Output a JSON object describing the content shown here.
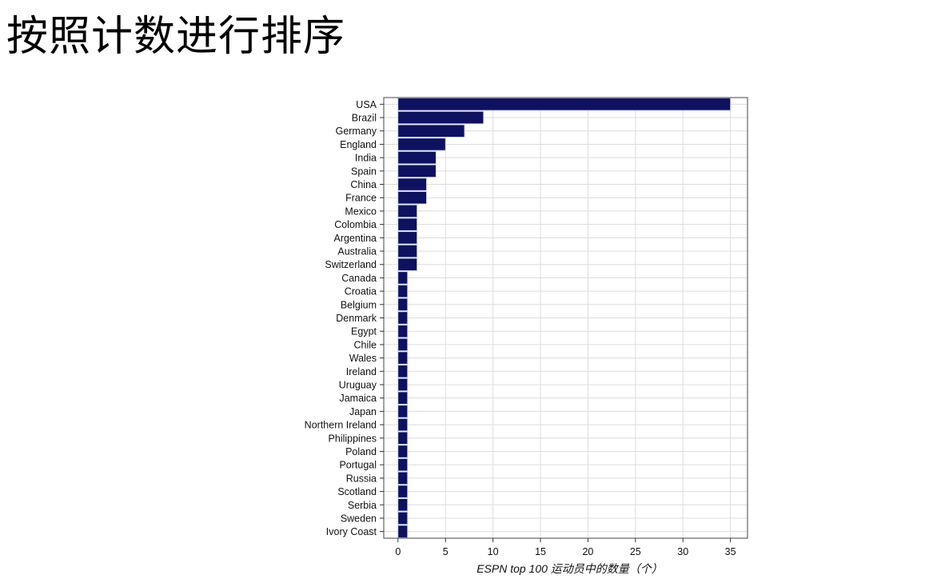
{
  "slide": {
    "title": "按照计数进行排序"
  },
  "chart_data": {
    "type": "bar",
    "orientation": "horizontal",
    "categories": [
      "USA",
      "Brazil",
      "Germany",
      "England",
      "India",
      "Spain",
      "China",
      "France",
      "Mexico",
      "Colombia",
      "Argentina",
      "Australia",
      "Switzerland",
      "Canada",
      "Croatia",
      "Belgium",
      "Denmark",
      "Egypt",
      "Chile",
      "Wales",
      "Ireland",
      "Uruguay",
      "Jamaica",
      "Japan",
      "Northern Ireland",
      "Philippines",
      "Poland",
      "Portugal",
      "Russia",
      "Scotland",
      "Serbia",
      "Sweden",
      "Ivory Coast"
    ],
    "values": [
      35,
      9,
      7,
      5,
      4,
      4,
      3,
      3,
      2,
      2,
      2,
      2,
      2,
      1,
      1,
      1,
      1,
      1,
      1,
      1,
      1,
      1,
      1,
      1,
      1,
      1,
      1,
      1,
      1,
      1,
      1,
      1,
      1
    ],
    "xlabel": "ESPN top 100 运动员中的数量（个）",
    "ylabel": "",
    "xlim": [
      -1.5,
      36.8
    ],
    "xticks": [
      0,
      5,
      10,
      15,
      20,
      25,
      30,
      35
    ],
    "grid": true,
    "bar_color": "#0d1160",
    "bar_edge_color": "#c8d0e8"
  }
}
